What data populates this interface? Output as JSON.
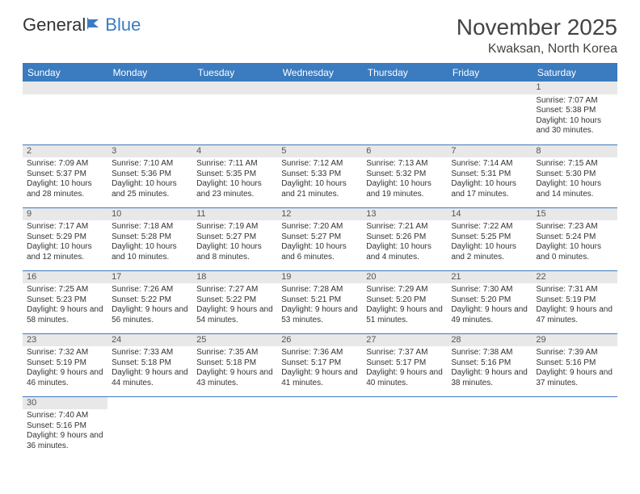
{
  "logo": {
    "text1": "General",
    "text2": "Blue"
  },
  "title": "November 2025",
  "location": "Kwaksan, North Korea",
  "colors": {
    "accent": "#3b7bbf",
    "dayStripe": "#e8e8e8",
    "text": "#333333",
    "bg": "#ffffff"
  },
  "weekdays": [
    "Sunday",
    "Monday",
    "Tuesday",
    "Wednesday",
    "Thursday",
    "Friday",
    "Saturday"
  ],
  "weeks": [
    [
      null,
      null,
      null,
      null,
      null,
      null,
      {
        "n": "1",
        "sr": "Sunrise: 7:07 AM",
        "ss": "Sunset: 5:38 PM",
        "dl": "Daylight: 10 hours and 30 minutes."
      }
    ],
    [
      {
        "n": "2",
        "sr": "Sunrise: 7:09 AM",
        "ss": "Sunset: 5:37 PM",
        "dl": "Daylight: 10 hours and 28 minutes."
      },
      {
        "n": "3",
        "sr": "Sunrise: 7:10 AM",
        "ss": "Sunset: 5:36 PM",
        "dl": "Daylight: 10 hours and 25 minutes."
      },
      {
        "n": "4",
        "sr": "Sunrise: 7:11 AM",
        "ss": "Sunset: 5:35 PM",
        "dl": "Daylight: 10 hours and 23 minutes."
      },
      {
        "n": "5",
        "sr": "Sunrise: 7:12 AM",
        "ss": "Sunset: 5:33 PM",
        "dl": "Daylight: 10 hours and 21 minutes."
      },
      {
        "n": "6",
        "sr": "Sunrise: 7:13 AM",
        "ss": "Sunset: 5:32 PM",
        "dl": "Daylight: 10 hours and 19 minutes."
      },
      {
        "n": "7",
        "sr": "Sunrise: 7:14 AM",
        "ss": "Sunset: 5:31 PM",
        "dl": "Daylight: 10 hours and 17 minutes."
      },
      {
        "n": "8",
        "sr": "Sunrise: 7:15 AM",
        "ss": "Sunset: 5:30 PM",
        "dl": "Daylight: 10 hours and 14 minutes."
      }
    ],
    [
      {
        "n": "9",
        "sr": "Sunrise: 7:17 AM",
        "ss": "Sunset: 5:29 PM",
        "dl": "Daylight: 10 hours and 12 minutes."
      },
      {
        "n": "10",
        "sr": "Sunrise: 7:18 AM",
        "ss": "Sunset: 5:28 PM",
        "dl": "Daylight: 10 hours and 10 minutes."
      },
      {
        "n": "11",
        "sr": "Sunrise: 7:19 AM",
        "ss": "Sunset: 5:27 PM",
        "dl": "Daylight: 10 hours and 8 minutes."
      },
      {
        "n": "12",
        "sr": "Sunrise: 7:20 AM",
        "ss": "Sunset: 5:27 PM",
        "dl": "Daylight: 10 hours and 6 minutes."
      },
      {
        "n": "13",
        "sr": "Sunrise: 7:21 AM",
        "ss": "Sunset: 5:26 PM",
        "dl": "Daylight: 10 hours and 4 minutes."
      },
      {
        "n": "14",
        "sr": "Sunrise: 7:22 AM",
        "ss": "Sunset: 5:25 PM",
        "dl": "Daylight: 10 hours and 2 minutes."
      },
      {
        "n": "15",
        "sr": "Sunrise: 7:23 AM",
        "ss": "Sunset: 5:24 PM",
        "dl": "Daylight: 10 hours and 0 minutes."
      }
    ],
    [
      {
        "n": "16",
        "sr": "Sunrise: 7:25 AM",
        "ss": "Sunset: 5:23 PM",
        "dl": "Daylight: 9 hours and 58 minutes."
      },
      {
        "n": "17",
        "sr": "Sunrise: 7:26 AM",
        "ss": "Sunset: 5:22 PM",
        "dl": "Daylight: 9 hours and 56 minutes."
      },
      {
        "n": "18",
        "sr": "Sunrise: 7:27 AM",
        "ss": "Sunset: 5:22 PM",
        "dl": "Daylight: 9 hours and 54 minutes."
      },
      {
        "n": "19",
        "sr": "Sunrise: 7:28 AM",
        "ss": "Sunset: 5:21 PM",
        "dl": "Daylight: 9 hours and 53 minutes."
      },
      {
        "n": "20",
        "sr": "Sunrise: 7:29 AM",
        "ss": "Sunset: 5:20 PM",
        "dl": "Daylight: 9 hours and 51 minutes."
      },
      {
        "n": "21",
        "sr": "Sunrise: 7:30 AM",
        "ss": "Sunset: 5:20 PM",
        "dl": "Daylight: 9 hours and 49 minutes."
      },
      {
        "n": "22",
        "sr": "Sunrise: 7:31 AM",
        "ss": "Sunset: 5:19 PM",
        "dl": "Daylight: 9 hours and 47 minutes."
      }
    ],
    [
      {
        "n": "23",
        "sr": "Sunrise: 7:32 AM",
        "ss": "Sunset: 5:19 PM",
        "dl": "Daylight: 9 hours and 46 minutes."
      },
      {
        "n": "24",
        "sr": "Sunrise: 7:33 AM",
        "ss": "Sunset: 5:18 PM",
        "dl": "Daylight: 9 hours and 44 minutes."
      },
      {
        "n": "25",
        "sr": "Sunrise: 7:35 AM",
        "ss": "Sunset: 5:18 PM",
        "dl": "Daylight: 9 hours and 43 minutes."
      },
      {
        "n": "26",
        "sr": "Sunrise: 7:36 AM",
        "ss": "Sunset: 5:17 PM",
        "dl": "Daylight: 9 hours and 41 minutes."
      },
      {
        "n": "27",
        "sr": "Sunrise: 7:37 AM",
        "ss": "Sunset: 5:17 PM",
        "dl": "Daylight: 9 hours and 40 minutes."
      },
      {
        "n": "28",
        "sr": "Sunrise: 7:38 AM",
        "ss": "Sunset: 5:16 PM",
        "dl": "Daylight: 9 hours and 38 minutes."
      },
      {
        "n": "29",
        "sr": "Sunrise: 7:39 AM",
        "ss": "Sunset: 5:16 PM",
        "dl": "Daylight: 9 hours and 37 minutes."
      }
    ],
    [
      {
        "n": "30",
        "sr": "Sunrise: 7:40 AM",
        "ss": "Sunset: 5:16 PM",
        "dl": "Daylight: 9 hours and 36 minutes."
      },
      null,
      null,
      null,
      null,
      null,
      null
    ]
  ]
}
